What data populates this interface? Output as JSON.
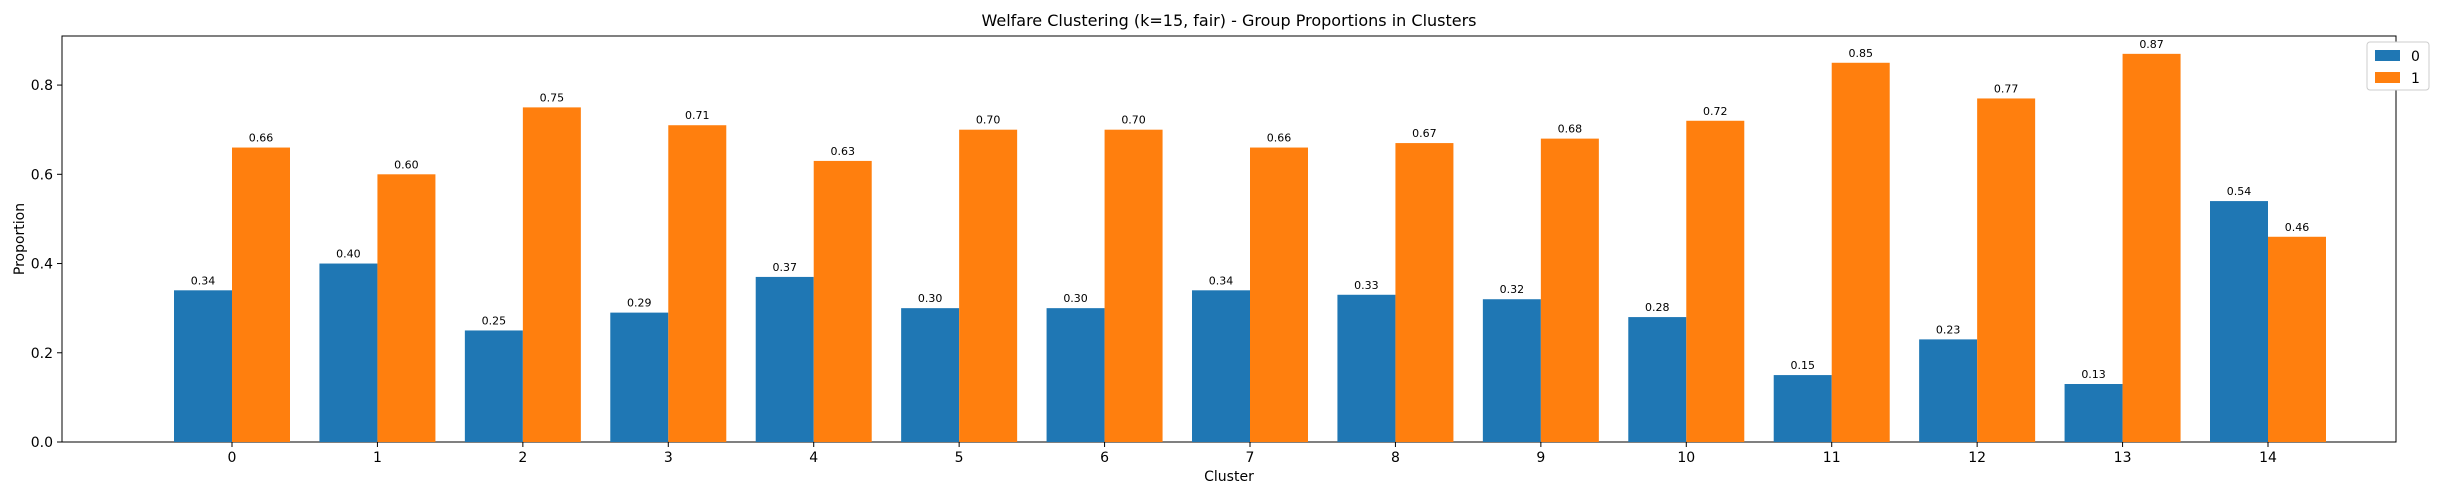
{
  "chart_data": {
    "type": "bar",
    "title": "Welfare Clustering (k=15, fair) - Group Proportions in Clusters",
    "xlabel": "Cluster",
    "ylabel": "Proportion",
    "categories": [
      "0",
      "1",
      "2",
      "3",
      "4",
      "5",
      "6",
      "7",
      "8",
      "9",
      "10",
      "11",
      "12",
      "13",
      "14"
    ],
    "series": [
      {
        "name": "0",
        "color": "#1f77b4",
        "values": [
          0.34,
          0.4,
          0.25,
          0.29,
          0.37,
          0.3,
          0.3,
          0.34,
          0.33,
          0.32,
          0.28,
          0.15,
          0.23,
          0.13,
          0.54
        ],
        "labels": [
          "0.34",
          "0.40",
          "0.25",
          "0.29",
          "0.37",
          "0.30",
          "0.30",
          "0.34",
          "0.33",
          "0.32",
          "0.28",
          "0.15",
          "0.23",
          "0.13",
          "0.54"
        ]
      },
      {
        "name": "1",
        "color": "#ff7f0e",
        "values": [
          0.66,
          0.6,
          0.75,
          0.71,
          0.63,
          0.7,
          0.7,
          0.66,
          0.67,
          0.68,
          0.72,
          0.85,
          0.77,
          0.87,
          0.46
        ],
        "labels": [
          "0.66",
          "0.60",
          "0.75",
          "0.71",
          "0.63",
          "0.70",
          "0.70",
          "0.66",
          "0.67",
          "0.68",
          "0.72",
          "0.85",
          "0.77",
          "0.87",
          "0.46"
        ]
      }
    ],
    "ylim": [
      0,
      0.91
    ],
    "yticks": [
      0.0,
      0.2,
      0.4,
      0.6,
      0.8
    ],
    "ytick_labels": [
      "0.0",
      "0.2",
      "0.4",
      "0.6",
      "0.8"
    ],
    "grid": false,
    "legend_position": "top-right"
  }
}
